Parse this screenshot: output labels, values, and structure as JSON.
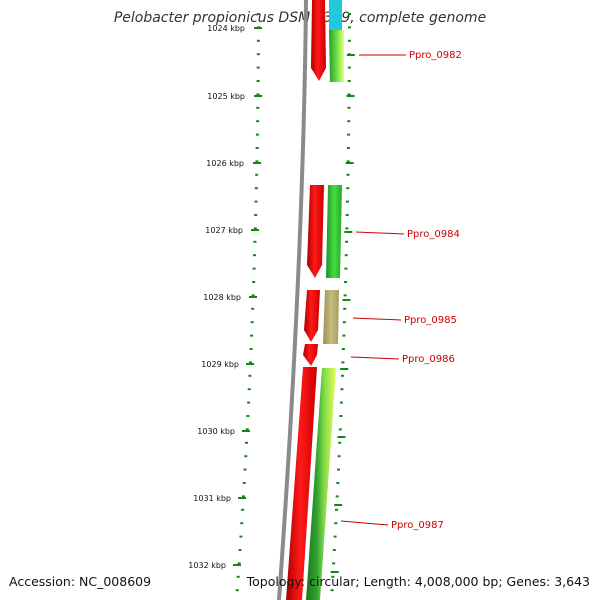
{
  "title": "Pelobacter propionicus DSM 2379, complete genome",
  "accession": "Accession: NC_008609",
  "summary": "Topology: circular; Length: 4,008,000 bp; Genes: 3,643",
  "scale_labels": [
    "1024 kbp",
    "1025 kbp",
    "1026 kbp",
    "1027 kbp",
    "1028 kbp",
    "1029 kbp",
    "1030 kbp",
    "1031 kbp",
    "1032 kbp"
  ],
  "genes": [
    {
      "label": "Ppro_0982"
    },
    {
      "label": "Ppro_0984"
    },
    {
      "label": "Ppro_0985"
    },
    {
      "label": "Ppro_0986"
    },
    {
      "label": "Ppro_0987"
    }
  ],
  "colors": {
    "backbone": "#8a8a8a",
    "forward_cds": "#ee0000",
    "tick": "#118811",
    "label": "#cc0000",
    "reverse_green": "#33cc33",
    "reverse_olive": "#b5a96a",
    "reverse_lime": "#ccff33",
    "reverse_cyan": "#22c8dd"
  }
}
